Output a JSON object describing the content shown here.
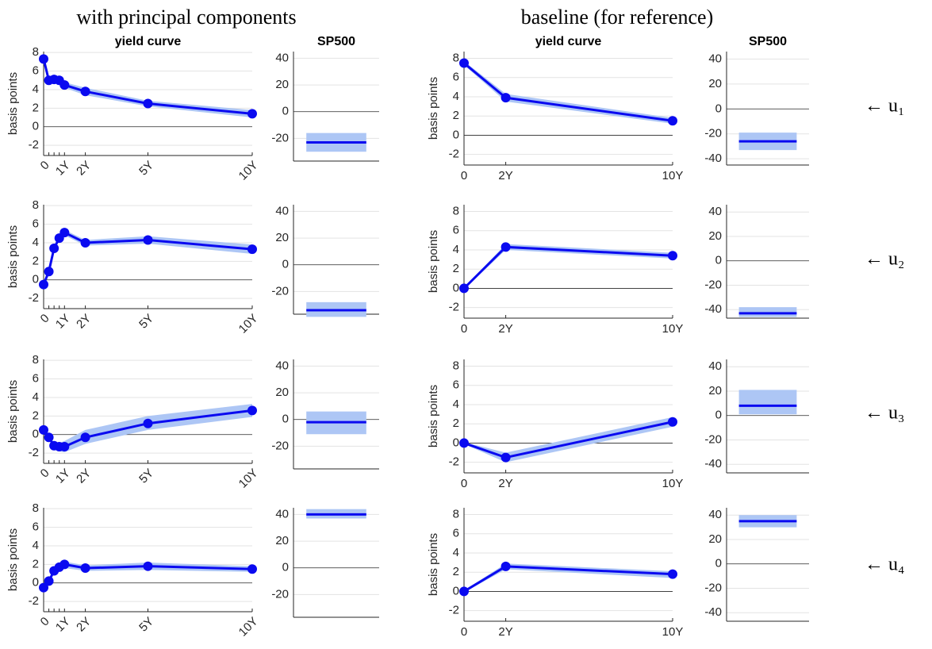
{
  "group_titles": [
    "with principal components",
    "baseline (for reference)"
  ],
  "row_labels": [
    "← u₁",
    "← u₂",
    "← u₃",
    "← u₄"
  ],
  "chart_data": [
    {
      "type": "line",
      "title": "yield curve",
      "ylabel": "basis points",
      "x": [
        0,
        0.25,
        0.5,
        0.75,
        1,
        2,
        5,
        10
      ],
      "values": [
        7.3,
        5.0,
        5.1,
        5.0,
        4.5,
        3.8,
        2.5,
        1.4
      ],
      "band_lower": [
        7.1,
        4.8,
        4.9,
        4.8,
        4.2,
        3.4,
        2.2,
        1.0
      ],
      "band_upper": [
        7.5,
        5.2,
        5.3,
        5.2,
        4.8,
        4.2,
        2.8,
        1.8
      ],
      "color": "#0a0af0",
      "band_color": "#adc6f5",
      "xlim": [
        0,
        10
      ],
      "ylim": [
        -3.1,
        8.1
      ],
      "yticks": [
        -2,
        0,
        2,
        4,
        6,
        8
      ],
      "xticks": [
        0,
        {
          "value": 0.25,
          "label": null
        },
        {
          "value": 0.5,
          "label": null
        },
        {
          "value": 0.75,
          "label": null
        },
        {
          "value": 1,
          "label": "1Y"
        },
        {
          "value": 2,
          "label": "2Y"
        },
        {
          "value": 5,
          "label": "5Y"
        },
        {
          "value": 10,
          "label": "10Y"
        }
      ],
      "xtick_rotation": 45,
      "grid": true
    },
    {
      "type": "interval",
      "title": "SP500",
      "value": -23,
      "band": [
        -30,
        -16
      ],
      "color": "#0a0af0",
      "band_color": "#adc6f5",
      "ylim": [
        -37,
        45
      ],
      "yticks": [
        -20,
        0,
        20,
        40
      ],
      "grid": true
    },
    {
      "type": "line",
      "title": "yield curve",
      "ylabel": "basis points",
      "x": [
        0,
        2,
        10
      ],
      "values": [
        7.5,
        3.9,
        1.5
      ],
      "band_lower": [
        7.3,
        3.5,
        1.2
      ],
      "band_upper": [
        7.7,
        4.3,
        1.8
      ],
      "color": "#0a0af0",
      "band_color": "#adc6f5",
      "xlim": [
        0,
        10
      ],
      "ylim": [
        -3.1,
        8.7
      ],
      "yticks": [
        -2,
        0,
        2,
        4,
        6,
        8
      ],
      "xticks": [
        0,
        {
          "value": 2,
          "label": "2Y"
        },
        {
          "value": 10,
          "label": "10Y"
        }
      ],
      "xtick_rotation": 0,
      "grid": true
    },
    {
      "type": "interval",
      "title": "SP500",
      "value": -26,
      "band": [
        -33,
        -19
      ],
      "color": "#0a0af0",
      "band_color": "#adc6f5",
      "ylim": [
        -45,
        46
      ],
      "yticks": [
        -40,
        -20,
        0,
        20,
        40
      ],
      "grid": true
    },
    {
      "type": "line",
      "ylabel": "basis points",
      "x": [
        0,
        0.25,
        0.5,
        0.75,
        1,
        2,
        5,
        10
      ],
      "values": [
        -0.5,
        0.9,
        3.4,
        4.5,
        5.1,
        4.0,
        4.3,
        3.3
      ],
      "band_lower": [
        -0.7,
        0.7,
        3.1,
        4.2,
        4.8,
        3.7,
        3.9,
        2.8
      ],
      "band_upper": [
        -0.3,
        1.1,
        3.7,
        4.8,
        5.4,
        4.3,
        4.7,
        3.8
      ],
      "color": "#0a0af0",
      "band_color": "#adc6f5",
      "xlim": [
        0,
        10
      ],
      "ylim": [
        -3.1,
        8.1
      ],
      "yticks": [
        -2,
        0,
        2,
        4,
        6,
        8
      ],
      "xticks": [
        0,
        {
          "value": 0.25,
          "label": null
        },
        {
          "value": 0.5,
          "label": null
        },
        {
          "value": 0.75,
          "label": null
        },
        {
          "value": 1,
          "label": "1Y"
        },
        {
          "value": 2,
          "label": "2Y"
        },
        {
          "value": 5,
          "label": "5Y"
        },
        {
          "value": 10,
          "label": "10Y"
        }
      ],
      "xtick_rotation": 45,
      "grid": true
    },
    {
      "type": "interval",
      "value": -34,
      "band": [
        -39,
        -28
      ],
      "color": "#0a0af0",
      "band_color": "#adc6f5",
      "ylim": [
        -37,
        45
      ],
      "yticks": [
        -20,
        0,
        20,
        40
      ],
      "grid": true
    },
    {
      "type": "line",
      "ylabel": "basis points",
      "x": [
        0,
        2,
        10
      ],
      "values": [
        0,
        4.3,
        3.4
      ],
      "band_lower": [
        -0.1,
        4.0,
        3.1
      ],
      "band_upper": [
        0.1,
        4.6,
        3.7
      ],
      "color": "#0a0af0",
      "band_color": "#adc6f5",
      "xlim": [
        0,
        10
      ],
      "ylim": [
        -3.1,
        8.7
      ],
      "yticks": [
        -2,
        0,
        2,
        4,
        6,
        8
      ],
      "xticks": [
        0,
        {
          "value": 2,
          "label": "2Y"
        },
        {
          "value": 10,
          "label": "10Y"
        }
      ],
      "xtick_rotation": 0,
      "grid": true
    },
    {
      "type": "interval",
      "value": -43,
      "band": [
        -46,
        -38
      ],
      "color": "#0a0af0",
      "band_color": "#adc6f5",
      "ylim": [
        -47,
        46
      ],
      "yticks": [
        -40,
        -20,
        0,
        20,
        40
      ],
      "grid": true
    },
    {
      "type": "line",
      "ylabel": "basis points",
      "x": [
        0,
        0.25,
        0.5,
        0.75,
        1,
        2,
        5,
        10
      ],
      "values": [
        0.5,
        -0.3,
        -1.2,
        -1.3,
        -1.3,
        -0.3,
        1.2,
        2.6
      ],
      "band_lower": [
        0.3,
        -0.6,
        -1.5,
        -1.8,
        -1.9,
        -1.0,
        0.5,
        1.9
      ],
      "band_upper": [
        0.7,
        0,
        -0.9,
        -0.9,
        -0.7,
        0.5,
        2.0,
        3.3
      ],
      "color": "#0a0af0",
      "band_color": "#adc6f5",
      "xlim": [
        0,
        10
      ],
      "ylim": [
        -3.1,
        8.1
      ],
      "yticks": [
        -2,
        0,
        2,
        4,
        6,
        8
      ],
      "xticks": [
        0,
        {
          "value": 0.25,
          "label": null
        },
        {
          "value": 0.5,
          "label": null
        },
        {
          "value": 0.75,
          "label": null
        },
        {
          "value": 1,
          "label": "1Y"
        },
        {
          "value": 2,
          "label": "2Y"
        },
        {
          "value": 5,
          "label": "5Y"
        },
        {
          "value": 10,
          "label": "10Y"
        }
      ],
      "xtick_rotation": 45,
      "grid": true
    },
    {
      "type": "interval",
      "value": -2,
      "band": [
        -11,
        6
      ],
      "color": "#0a0af0",
      "band_color": "#adc6f5",
      "ylim": [
        -37,
        45
      ],
      "yticks": [
        -20,
        0,
        20,
        40
      ],
      "grid": true
    },
    {
      "type": "line",
      "ylabel": "basis points",
      "x": [
        0,
        2,
        10
      ],
      "values": [
        0,
        -1.5,
        2.2
      ],
      "band_lower": [
        -0.1,
        -2.0,
        1.7
      ],
      "band_upper": [
        0.1,
        -1.0,
        2.7
      ],
      "color": "#0a0af0",
      "band_color": "#adc6f5",
      "xlim": [
        0,
        10
      ],
      "ylim": [
        -3.1,
        8.7
      ],
      "yticks": [
        -2,
        0,
        2,
        4,
        6,
        8
      ],
      "xticks": [
        0,
        {
          "value": 2,
          "label": "2Y"
        },
        {
          "value": 10,
          "label": "10Y"
        }
      ],
      "xtick_rotation": 0,
      "grid": true
    },
    {
      "type": "interval",
      "value": 8,
      "band": [
        1,
        21
      ],
      "color": "#0a0af0",
      "band_color": "#adc6f5",
      "ylim": [
        -47,
        46
      ],
      "yticks": [
        -40,
        -20,
        0,
        20,
        40
      ],
      "grid": true
    },
    {
      "type": "line",
      "ylabel": "basis points",
      "x": [
        0,
        0.25,
        0.5,
        0.75,
        1,
        2,
        5,
        10
      ],
      "values": [
        -0.5,
        0.2,
        1.3,
        1.7,
        2.0,
        1.6,
        1.8,
        1.5
      ],
      "band_lower": [
        -0.7,
        0,
        1.0,
        1.4,
        1.6,
        1.3,
        1.4,
        1.2
      ],
      "band_upper": [
        -0.3,
        0.4,
        1.6,
        2.0,
        2.3,
        1.9,
        2.2,
        1.8
      ],
      "color": "#0a0af0",
      "band_color": "#adc6f5",
      "xlim": [
        0,
        10
      ],
      "ylim": [
        -3.1,
        8.1
      ],
      "yticks": [
        -2,
        0,
        2,
        4,
        6,
        8
      ],
      "xticks": [
        0,
        {
          "value": 0.25,
          "label": null
        },
        {
          "value": 0.5,
          "label": null
        },
        {
          "value": 0.75,
          "label": null
        },
        {
          "value": 1,
          "label": "1Y"
        },
        {
          "value": 2,
          "label": "2Y"
        },
        {
          "value": 5,
          "label": "5Y"
        },
        {
          "value": 10,
          "label": "10Y"
        }
      ],
      "xtick_rotation": 45,
      "grid": true
    },
    {
      "type": "interval",
      "value": 40,
      "band": [
        37,
        44
      ],
      "color": "#0a0af0",
      "band_color": "#adc6f5",
      "ylim": [
        -37,
        45
      ],
      "yticks": [
        -20,
        0,
        20,
        40
      ],
      "grid": true
    },
    {
      "type": "line",
      "ylabel": "basis points",
      "x": [
        0,
        2,
        10
      ],
      "values": [
        0,
        2.6,
        1.8
      ],
      "band_lower": [
        -0.1,
        2.3,
        1.4
      ],
      "band_upper": [
        0.1,
        2.9,
        2.1
      ],
      "color": "#0a0af0",
      "band_color": "#adc6f5",
      "xlim": [
        0,
        10
      ],
      "ylim": [
        -3.1,
        8.7
      ],
      "yticks": [
        -2,
        0,
        2,
        4,
        6,
        8
      ],
      "xticks": [
        0,
        {
          "value": 2,
          "label": "2Y"
        },
        {
          "value": 10,
          "label": "10Y"
        }
      ],
      "xtick_rotation": 0,
      "grid": true
    },
    {
      "type": "interval",
      "value": 35,
      "band": [
        30,
        40
      ],
      "color": "#0a0af0",
      "band_color": "#adc6f5",
      "ylim": [
        -47,
        46
      ],
      "yticks": [
        -40,
        -20,
        0,
        20,
        40
      ],
      "grid": true
    }
  ]
}
